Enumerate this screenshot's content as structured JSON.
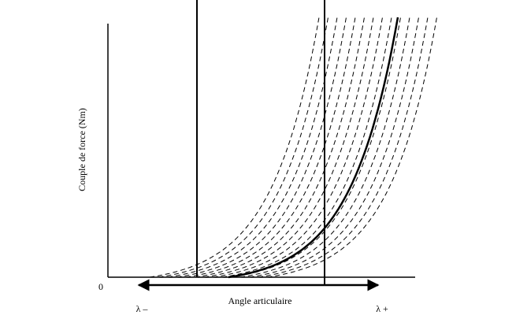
{
  "y_axis_label": "Couple de force (Nm)",
  "x_axis_label": "Angle articulaire",
  "origin_label": "0",
  "lambda_minus": "λ –",
  "lambda_plus": "λ +"
}
